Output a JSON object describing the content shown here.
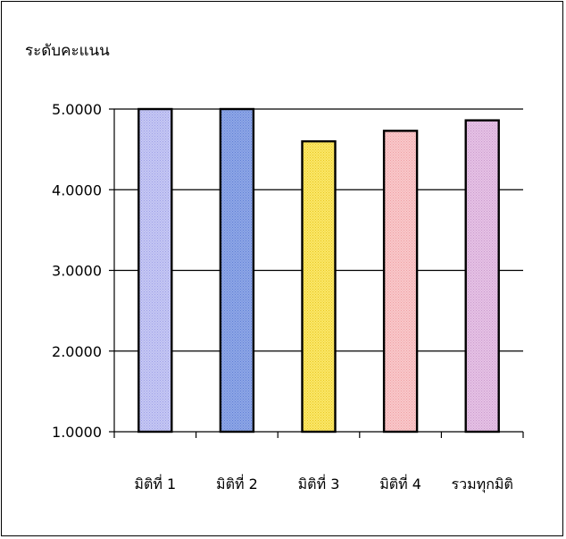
{
  "chart_data": {
    "type": "bar",
    "ylabel": "ระดับคะแนน",
    "categories": [
      "มิติที่ 1",
      "มิติที่ 2",
      "มิติที่ 3",
      "มิติที่ 4",
      "รวมทุกมิติ"
    ],
    "values": [
      5.0,
      5.0,
      4.6,
      4.73,
      4.86
    ],
    "ylim": [
      1.0,
      5.0
    ],
    "yticks": [
      "1.0000",
      "2.0000",
      "3.0000",
      "4.0000",
      "5.0000"
    ],
    "grid": true,
    "bar_colors": [
      "#c6c8f4",
      "#8fa7e6",
      "#fbe86a",
      "#f9c9cb",
      "#e6c2e6"
    ],
    "bar_patterns": [
      "#9c9ee6",
      "#5f7fd6",
      "#e8c51e",
      "#ee9fa3",
      "#c99acb"
    ]
  }
}
